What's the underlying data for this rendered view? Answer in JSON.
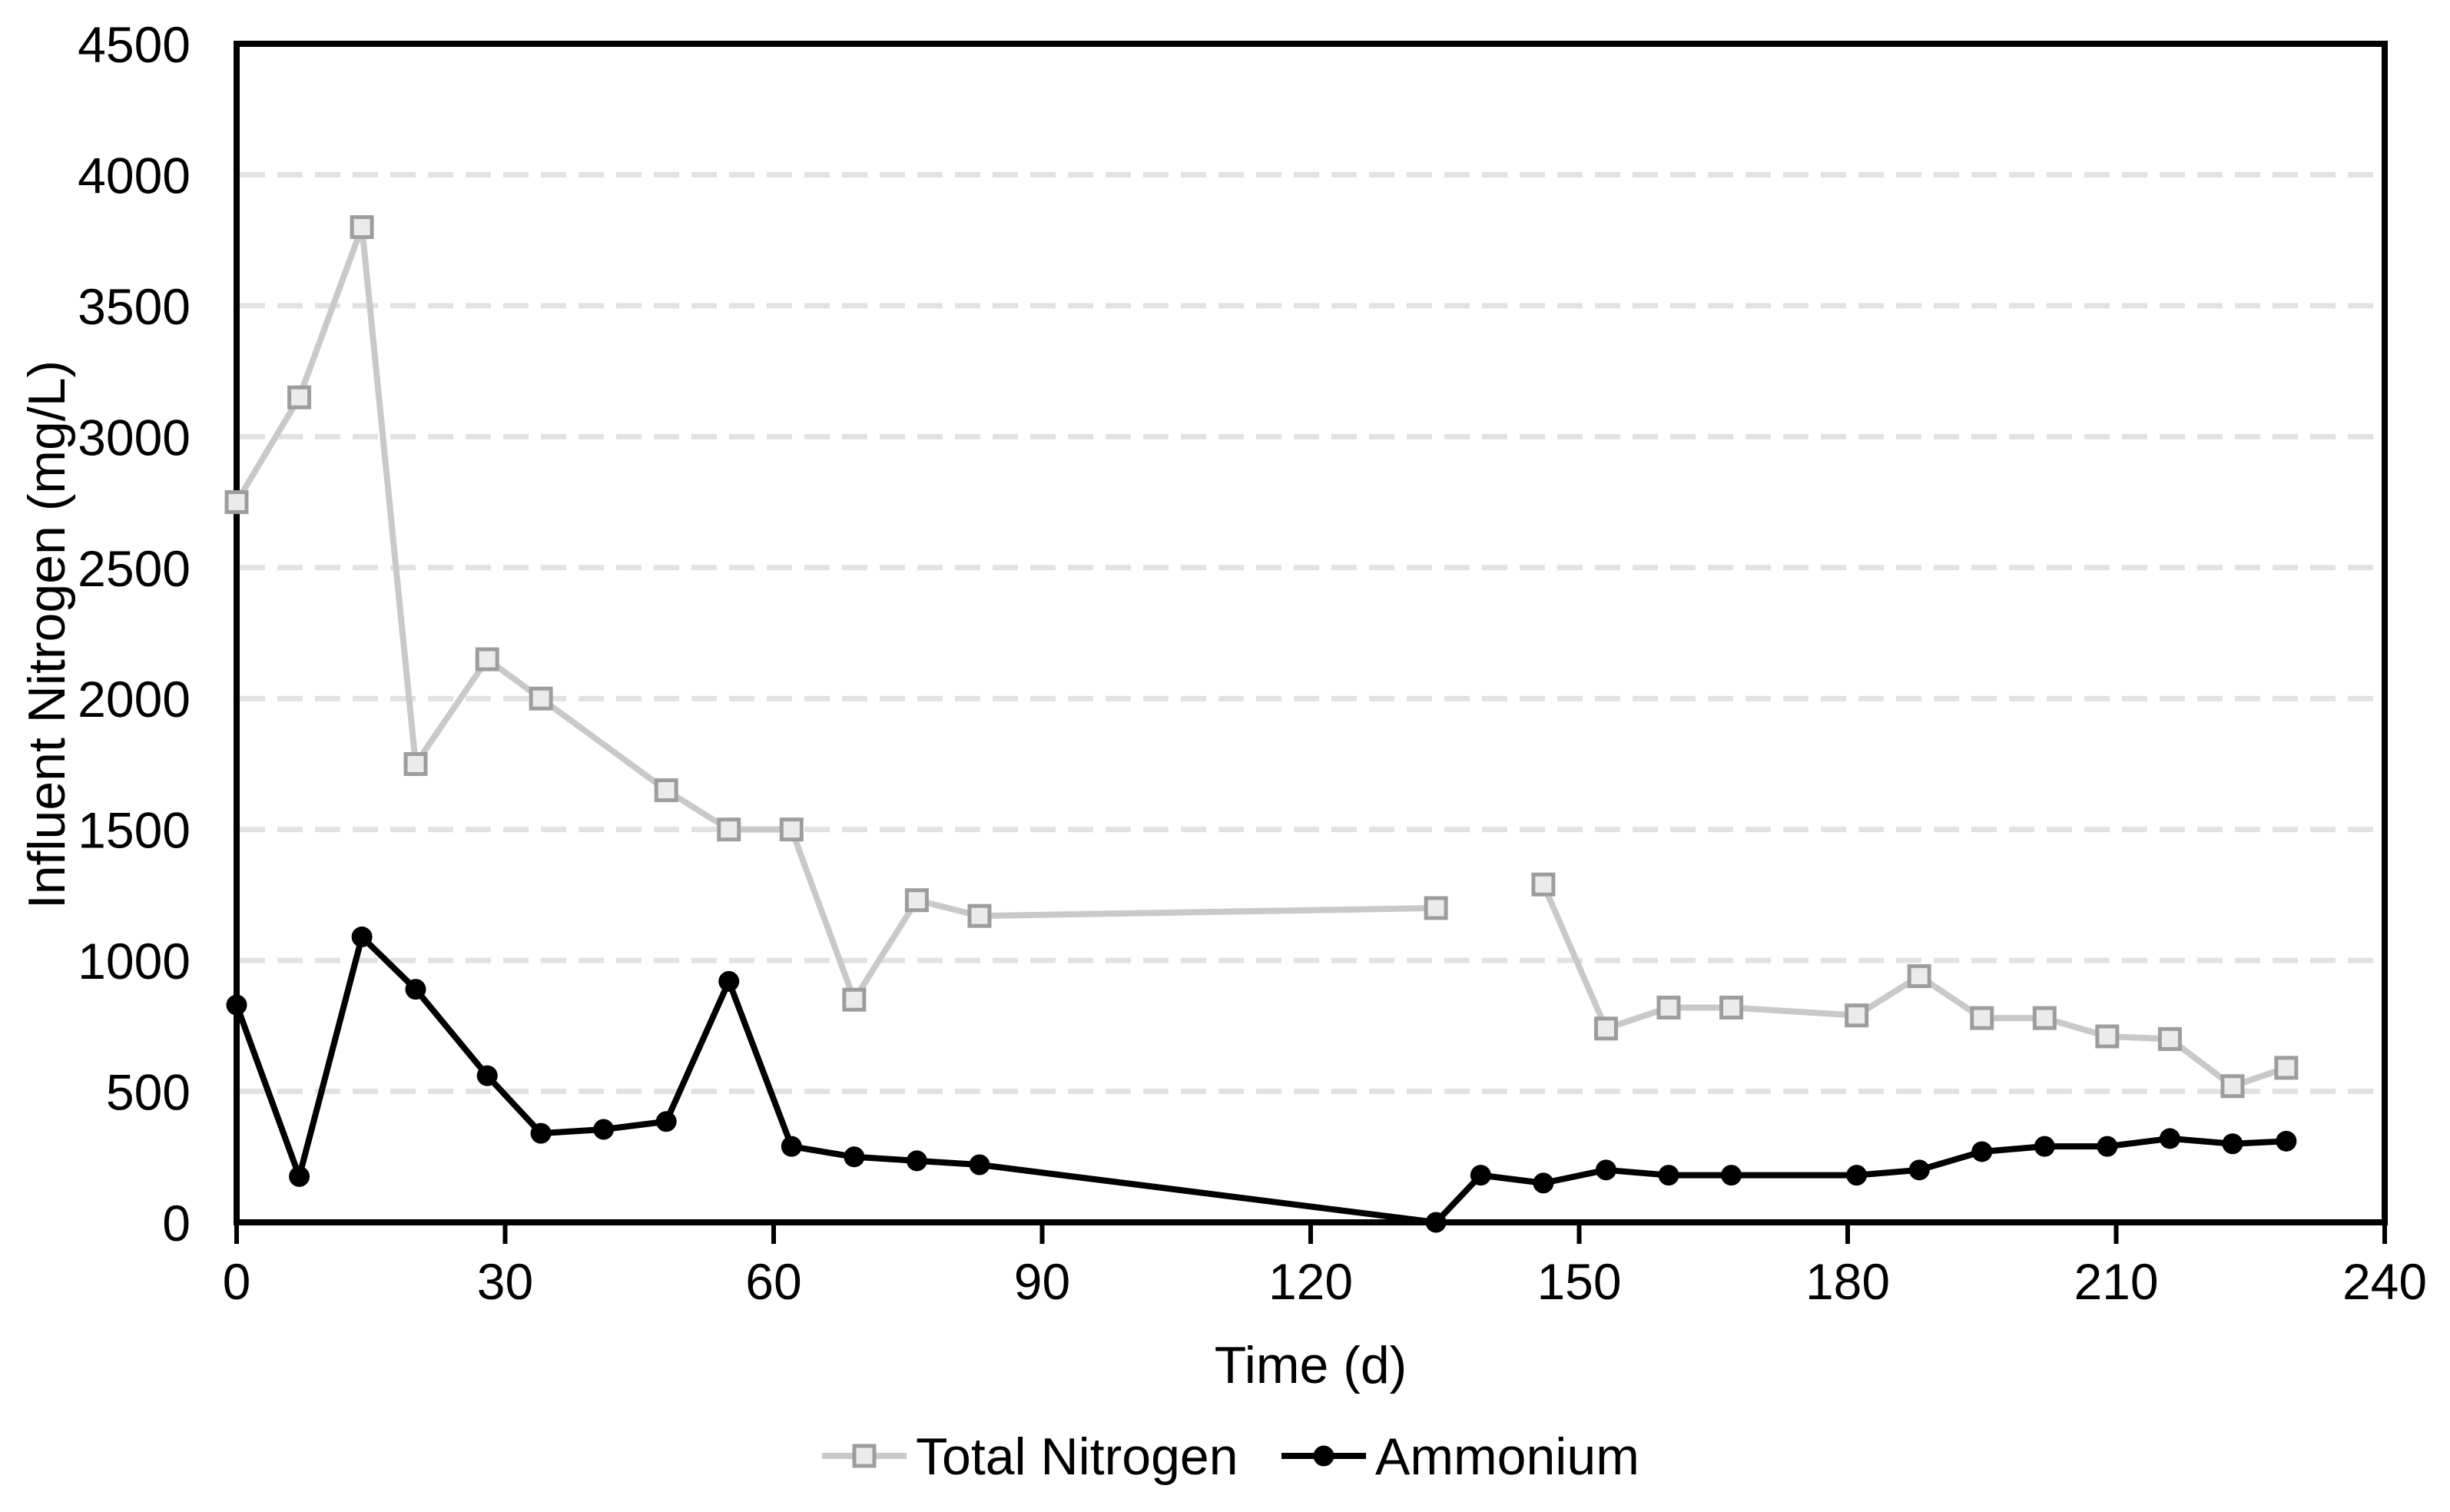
{
  "chart_data": {
    "type": "line",
    "title": "",
    "xlabel": "Time (d)",
    "ylabel": "Influent Nitrogen (mg/L)",
    "xlim": [
      0,
      240
    ],
    "ylim": [
      0,
      4500
    ],
    "xticks": [
      0,
      30,
      60,
      90,
      120,
      150,
      180,
      210,
      240
    ],
    "yticks": [
      0,
      500,
      1000,
      1500,
      2000,
      2500,
      3000,
      3500,
      4000,
      4500
    ],
    "grid": "horizontal-dashed",
    "legend_position": "bottom-center",
    "colors": {
      "background": "#ffffff",
      "axis": "#000000",
      "text": "#000000",
      "gridline": "#e2e2e2",
      "total_nitrogen_line": "#c9c9c9",
      "total_nitrogen_marker_fill": "#ebebeb",
      "total_nitrogen_marker_stroke": "#9d9d9d",
      "ammonium": "#000000"
    },
    "series": [
      {
        "name": "Total Nitrogen",
        "marker": "square",
        "line_color": "#c9c9c9",
        "marker_fill": "#ebebeb",
        "marker_stroke": "#9d9d9d",
        "segments": [
          [
            [
              0,
              2750
            ],
            [
              7,
              3150
            ],
            [
              14,
              3800
            ],
            [
              20,
              1750
            ],
            [
              28,
              2150
            ],
            [
              34,
              2000
            ],
            [
              48,
              1650
            ],
            [
              55,
              1500
            ],
            [
              62,
              1500
            ],
            [
              69,
              850
            ],
            [
              76,
              1230
            ],
            [
              83,
              1170
            ],
            [
              134,
              1200
            ]
          ],
          [
            [
              146,
              1290
            ],
            [
              153,
              740
            ],
            [
              160,
              820
            ],
            [
              167,
              820
            ],
            [
              181,
              790
            ],
            [
              188,
              940
            ],
            [
              195,
              780
            ],
            [
              202,
              780
            ],
            [
              209,
              710
            ],
            [
              216,
              700
            ],
            [
              223,
              520
            ],
            [
              229,
              590
            ]
          ]
        ]
      },
      {
        "name": "Ammonium",
        "marker": "circle",
        "line_color": "#000000",
        "marker_fill": "#000000",
        "marker_stroke": "#000000",
        "segments": [
          [
            [
              0,
              830
            ],
            [
              7,
              175
            ],
            [
              14,
              1090
            ],
            [
              20,
              890
            ],
            [
              28,
              560
            ],
            [
              34,
              340
            ],
            [
              41,
              355
            ],
            [
              48,
              385
            ],
            [
              55,
              920
            ],
            [
              62,
              290
            ],
            [
              69,
              250
            ],
            [
              76,
              235
            ],
            [
              83,
              220
            ],
            [
              134,
              0
            ],
            [
              139,
              180
            ],
            [
              146,
              150
            ],
            [
              153,
              200
            ],
            [
              160,
              180
            ],
            [
              167,
              180
            ],
            [
              181,
              180
            ],
            [
              188,
              200
            ],
            [
              195,
              270
            ],
            [
              202,
              290
            ],
            [
              209,
              290
            ],
            [
              216,
              320
            ],
            [
              223,
              300
            ],
            [
              229,
              310
            ]
          ]
        ]
      }
    ]
  }
}
